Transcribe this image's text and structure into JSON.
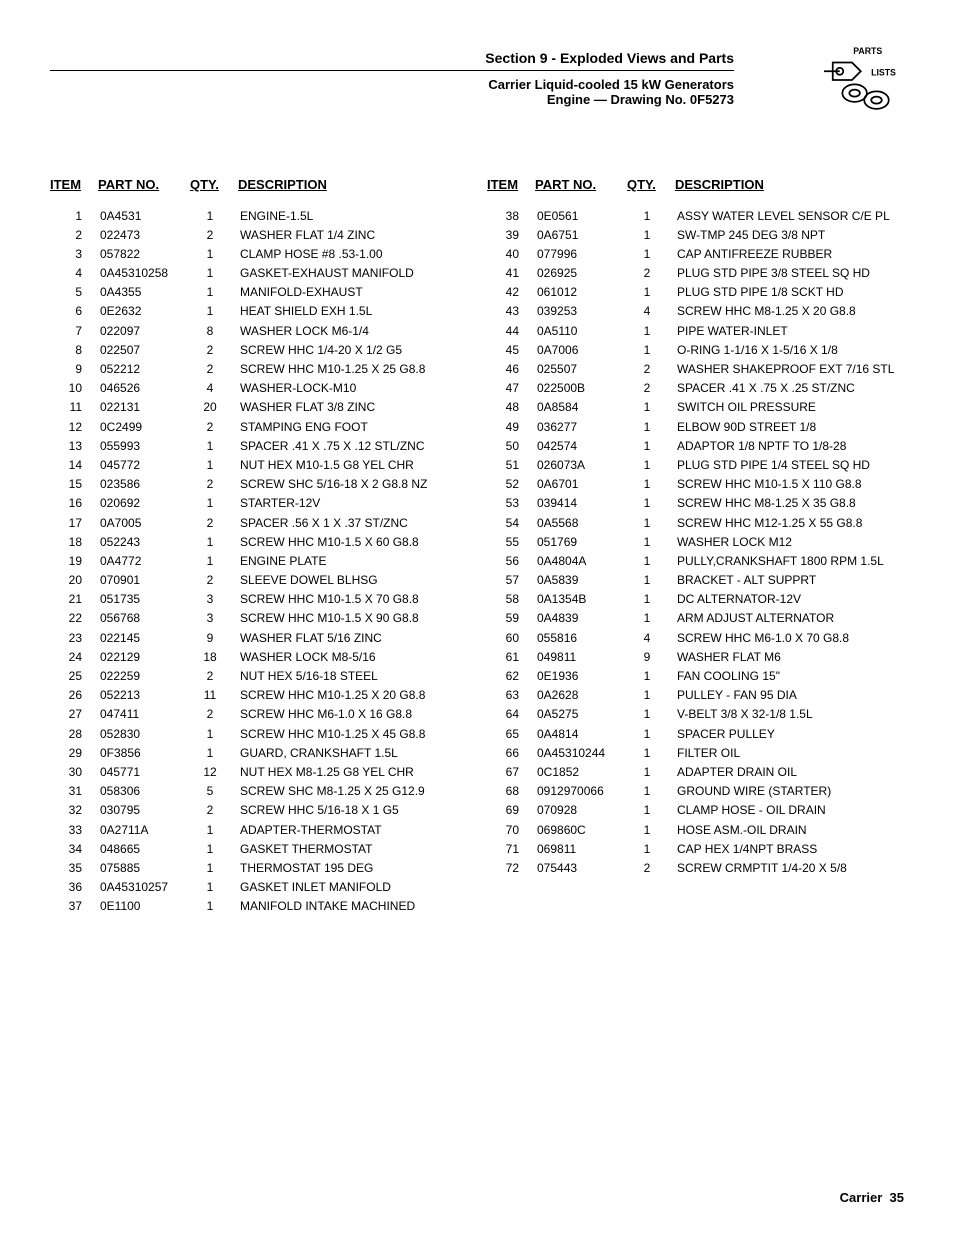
{
  "header": {
    "section_title": "Section 9 - Exploded Views and Parts",
    "sub1": "Carrier Liquid-cooled 15 kW Generators",
    "sub2": "Engine — Drawing No. 0F5273",
    "logo_label_top": "PARTS",
    "logo_label_bottom": "LISTS"
  },
  "columns_header": {
    "item": "ITEM",
    "part": "PART NO.",
    "qty": "QTY.",
    "desc": "DESCRIPTION"
  },
  "left": [
    {
      "item": "1",
      "part": "0A4531",
      "qty": "1",
      "desc": "ENGINE-1.5L"
    },
    {
      "item": "2",
      "part": "022473",
      "qty": "2",
      "desc": "WASHER FLAT 1/4 ZINC"
    },
    {
      "item": "3",
      "part": "057822",
      "qty": "1",
      "desc": "CLAMP HOSE #8 .53-1.00"
    },
    {
      "item": "4",
      "part": "0A45310258",
      "qty": "1",
      "desc": "GASKET-EXHAUST MANIFOLD"
    },
    {
      "item": "5",
      "part": "0A4355",
      "qty": "1",
      "desc": "MANIFOLD-EXHAUST"
    },
    {
      "item": "6",
      "part": "0E2632",
      "qty": "1",
      "desc": "HEAT SHIELD EXH 1.5L"
    },
    {
      "item": "7",
      "part": "022097",
      "qty": "8",
      "desc": "WASHER LOCK M6-1/4"
    },
    {
      "item": "8",
      "part": "022507",
      "qty": "2",
      "desc": "SCREW HHC 1/4-20 X 1/2 G5"
    },
    {
      "item": "9",
      "part": "052212",
      "qty": "2",
      "desc": "SCREW HHC M10-1.25 X 25 G8.8"
    },
    {
      "item": "10",
      "part": "046526",
      "qty": "4",
      "desc": "WASHER-LOCK-M10"
    },
    {
      "item": "11",
      "part": "022131",
      "qty": "20",
      "desc": "WASHER FLAT 3/8 ZINC"
    },
    {
      "item": "12",
      "part": "0C2499",
      "qty": "2",
      "desc": "STAMPING ENG FOOT"
    },
    {
      "item": "13",
      "part": "055993",
      "qty": "1",
      "desc": "SPACER .41 X .75 X .12 STL/ZNC"
    },
    {
      "item": "14",
      "part": "045772",
      "qty": "1",
      "desc": "NUT HEX M10-1.5 G8 YEL CHR"
    },
    {
      "item": "15",
      "part": "023586",
      "qty": "2",
      "desc": "SCREW SHC 5/16-18 X 2 G8.8 NZ"
    },
    {
      "item": "16",
      "part": "020692",
      "qty": "1",
      "desc": "STARTER-12V"
    },
    {
      "item": "17",
      "part": "0A7005",
      "qty": "2",
      "desc": "SPACER .56 X 1 X .37 ST/ZNC"
    },
    {
      "item": "18",
      "part": "052243",
      "qty": "1",
      "desc": "SCREW HHC M10-1.5 X 60 G8.8"
    },
    {
      "item": "19",
      "part": "0A4772",
      "qty": "1",
      "desc": "ENGINE PLATE"
    },
    {
      "item": "20",
      "part": "070901",
      "qty": "2",
      "desc": "SLEEVE DOWEL BLHSG"
    },
    {
      "item": "21",
      "part": "051735",
      "qty": "3",
      "desc": "SCREW HHC M10-1.5 X 70 G8.8"
    },
    {
      "item": "22",
      "part": "056768",
      "qty": "3",
      "desc": "SCREW HHC M10-1.5 X 90 G8.8"
    },
    {
      "item": "23",
      "part": "022145",
      "qty": "9",
      "desc": "WASHER FLAT 5/16 ZINC"
    },
    {
      "item": "24",
      "part": "022129",
      "qty": "18",
      "desc": "WASHER LOCK M8-5/16"
    },
    {
      "item": "25",
      "part": "022259",
      "qty": "2",
      "desc": "NUT HEX 5/16-18 STEEL"
    },
    {
      "item": "26",
      "part": "052213",
      "qty": "11",
      "desc": "SCREW HHC M10-1.25 X 20 G8.8"
    },
    {
      "item": "27",
      "part": "047411",
      "qty": "2",
      "desc": "SCREW HHC M6-1.0 X 16 G8.8"
    },
    {
      "item": "28",
      "part": "052830",
      "qty": "1",
      "desc": "SCREW HHC M10-1.25 X 45 G8.8"
    },
    {
      "item": "29",
      "part": "0F3856",
      "qty": "1",
      "desc": "GUARD, CRANKSHAFT 1.5L"
    },
    {
      "item": "30",
      "part": "045771",
      "qty": "12",
      "desc": "NUT HEX M8-1.25 G8 YEL CHR"
    },
    {
      "item": "31",
      "part": "058306",
      "qty": "5",
      "desc": "SCREW SHC M8-1.25 X 25 G12.9"
    },
    {
      "item": "32",
      "part": "030795",
      "qty": "2",
      "desc": "SCREW HHC 5/16-18 X 1 G5"
    },
    {
      "item": "33",
      "part": "0A2711A",
      "qty": "1",
      "desc": "ADAPTER-THERMOSTAT"
    },
    {
      "item": "34",
      "part": "048665",
      "qty": "1",
      "desc": "GASKET THERMOSTAT"
    },
    {
      "item": "35",
      "part": "075885",
      "qty": "1",
      "desc": "THERMOSTAT 195 DEG"
    },
    {
      "item": "36",
      "part": "0A45310257",
      "qty": "1",
      "desc": "GASKET INLET MANIFOLD"
    },
    {
      "item": "37",
      "part": "0E1100",
      "qty": "1",
      "desc": "MANIFOLD INTAKE MACHINED"
    }
  ],
  "right": [
    {
      "item": "38",
      "part": "0E0561",
      "qty": "1",
      "desc": "ASSY WATER LEVEL SENSOR C/E PL"
    },
    {
      "item": "39",
      "part": "0A6751",
      "qty": "1",
      "desc": "SW-TMP 245 DEG 3/8 NPT"
    },
    {
      "item": "40",
      "part": "077996",
      "qty": "1",
      "desc": "CAP ANTIFREEZE RUBBER"
    },
    {
      "item": "41",
      "part": "026925",
      "qty": "2",
      "desc": "PLUG STD PIPE 3/8 STEEL SQ HD"
    },
    {
      "item": "42",
      "part": "061012",
      "qty": "1",
      "desc": "PLUG STD PIPE 1/8 SCKT HD"
    },
    {
      "item": "43",
      "part": "039253",
      "qty": "4",
      "desc": "SCREW HHC M8-1.25 X 20 G8.8"
    },
    {
      "item": "44",
      "part": "0A5110",
      "qty": "1",
      "desc": "PIPE WATER-INLET"
    },
    {
      "item": "45",
      "part": "0A7006",
      "qty": "1",
      "desc": "O-RING 1-1/16 X 1-5/16 X 1/8"
    },
    {
      "item": "46",
      "part": "025507",
      "qty": "2",
      "desc": "WASHER SHAKEPROOF EXT 7/16 STL"
    },
    {
      "item": "47",
      "part": "022500B",
      "qty": "2",
      "desc": "SPACER .41 X .75 X .25 ST/ZNC"
    },
    {
      "item": "48",
      "part": "0A8584",
      "qty": "1",
      "desc": "SWITCH OIL PRESSURE"
    },
    {
      "item": "49",
      "part": "036277",
      "qty": "1",
      "desc": "ELBOW 90D STREET 1/8"
    },
    {
      "item": "50",
      "part": "042574",
      "qty": "1",
      "desc": "ADAPTOR 1/8 NPTF TO 1/8-28"
    },
    {
      "item": "51",
      "part": "026073A",
      "qty": "1",
      "desc": "PLUG STD PIPE 1/4 STEEL SQ HD"
    },
    {
      "item": "52",
      "part": "0A6701",
      "qty": "1",
      "desc": "SCREW HHC M10-1.5 X 110 G8.8"
    },
    {
      "item": "53",
      "part": "039414",
      "qty": "1",
      "desc": "SCREW HHC M8-1.25 X 35 G8.8"
    },
    {
      "item": "54",
      "part": "0A5568",
      "qty": "1",
      "desc": "SCREW HHC M12-1.25 X 55 G8.8"
    },
    {
      "item": "55",
      "part": "051769",
      "qty": "1",
      "desc": "WASHER LOCK M12"
    },
    {
      "item": "56",
      "part": "0A4804A",
      "qty": "1",
      "desc": "PULLY,CRANKSHAFT 1800 RPM 1.5L"
    },
    {
      "item": "57",
      "part": "0A5839",
      "qty": "1",
      "desc": "BRACKET - ALT SUPPRT"
    },
    {
      "item": "58",
      "part": "0A1354B",
      "qty": "1",
      "desc": "DC ALTERNATOR-12V"
    },
    {
      "item": "59",
      "part": "0A4839",
      "qty": "1",
      "desc": "ARM ADJUST ALTERNATOR"
    },
    {
      "item": "60",
      "part": "055816",
      "qty": "4",
      "desc": "SCREW HHC M6-1.0 X 70 G8.8"
    },
    {
      "item": "61",
      "part": "049811",
      "qty": "9",
      "desc": "WASHER FLAT M6"
    },
    {
      "item": "62",
      "part": "0E1936",
      "qty": "1",
      "desc": "FAN COOLING 15\""
    },
    {
      "item": "63",
      "part": "0A2628",
      "qty": "1",
      "desc": "PULLEY - FAN 95 DIA"
    },
    {
      "item": "64",
      "part": "0A5275",
      "qty": "1",
      "desc": "V-BELT 3/8 X 32-1/8  1.5L"
    },
    {
      "item": "65",
      "part": "0A4814",
      "qty": "1",
      "desc": "SPACER PULLEY"
    },
    {
      "item": "66",
      "part": "0A45310244",
      "qty": "1",
      "desc": "FILTER OIL"
    },
    {
      "item": "67",
      "part": "0C1852",
      "qty": "1",
      "desc": "ADAPTER DRAIN OIL"
    },
    {
      "item": "68",
      "part": "0912970066",
      "qty": "1",
      "desc": "GROUND WIRE (STARTER)"
    },
    {
      "item": "69",
      "part": "070928",
      "qty": "1",
      "desc": "CLAMP HOSE - OIL DRAIN"
    },
    {
      "item": "70",
      "part": "069860C",
      "qty": "1",
      "desc": "HOSE ASM.-OIL DRAIN"
    },
    {
      "item": "71",
      "part": "069811",
      "qty": "1",
      "desc": "CAP HEX 1/4NPT BRASS"
    },
    {
      "item": "72",
      "part": "075443",
      "qty": "2",
      "desc": "SCREW CRMPTIT 1/4-20 X 5/8"
    }
  ],
  "footer": {
    "brand": "Carrier",
    "page": "35"
  }
}
